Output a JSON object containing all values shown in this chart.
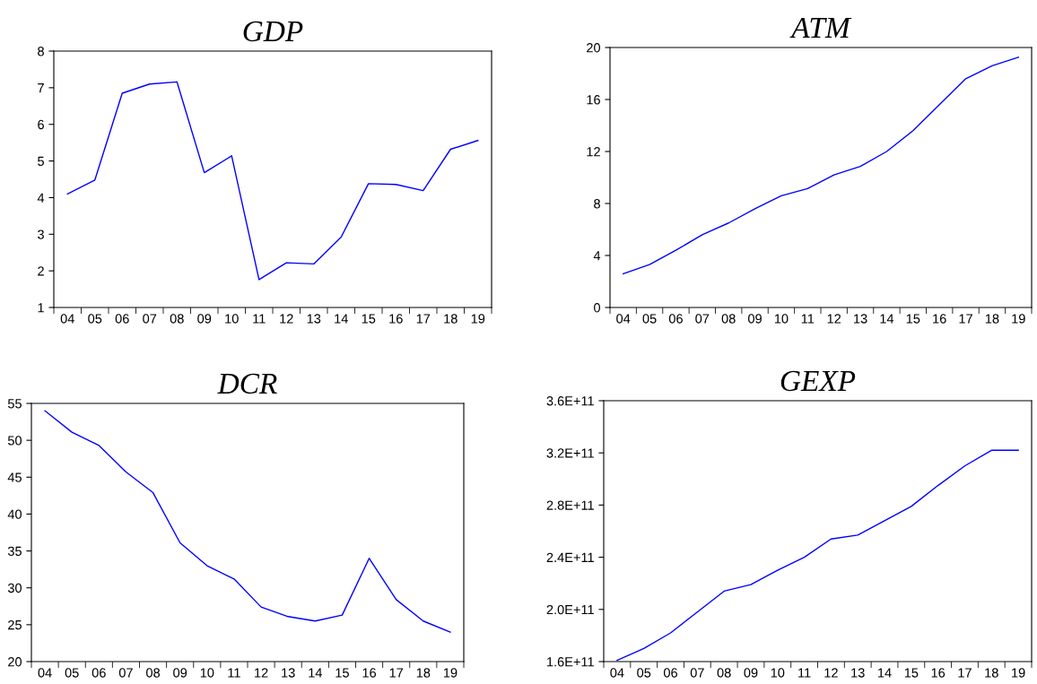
{
  "chart_data": [
    {
      "type": "line",
      "title": "GDP",
      "categories": [
        "04",
        "05",
        "06",
        "07",
        "08",
        "09",
        "10",
        "11",
        "12",
        "13",
        "14",
        "15",
        "16",
        "17",
        "18",
        "19"
      ],
      "series": [
        {
          "color": "#0000ff",
          "values": [
            4.1,
            4.48,
            6.85,
            7.1,
            7.16,
            4.68,
            5.14,
            1.76,
            2.22,
            2.19,
            2.92,
            4.38,
            4.36,
            4.19,
            5.32,
            5.56
          ]
        }
      ],
      "ylim": [
        1,
        8
      ],
      "yticks": [
        1,
        2,
        3,
        4,
        5,
        6,
        7,
        8
      ],
      "grid": false
    },
    {
      "type": "line",
      "title": "ATM",
      "categories": [
        "04",
        "05",
        "06",
        "07",
        "08",
        "09",
        "10",
        "11",
        "12",
        "13",
        "14",
        "15",
        "16",
        "17",
        "18",
        "19"
      ],
      "series": [
        {
          "color": "#0000ff",
          "values": [
            2.6,
            3.3,
            4.4,
            5.6,
            6.5,
            7.6,
            8.6,
            9.15,
            10.2,
            10.85,
            12.0,
            13.6,
            15.6,
            17.6,
            18.6,
            19.25
          ]
        }
      ],
      "ylim": [
        0,
        20
      ],
      "yticks": [
        0,
        4,
        8,
        12,
        16,
        20
      ],
      "grid": false
    },
    {
      "type": "line",
      "title": "DCR",
      "categories": [
        "04",
        "05",
        "06",
        "07",
        "08",
        "09",
        "10",
        "11",
        "12",
        "13",
        "14",
        "15",
        "16",
        "17",
        "18",
        "19"
      ],
      "series": [
        {
          "color": "#0000ff",
          "values": [
            54.0,
            51.1,
            49.3,
            45.7,
            42.9,
            36.1,
            33.0,
            31.2,
            27.4,
            26.1,
            25.5,
            26.3,
            34.0,
            28.4,
            25.5,
            24.0
          ]
        }
      ],
      "ylim": [
        20,
        55
      ],
      "yticks": [
        20,
        25,
        30,
        35,
        40,
        45,
        50,
        55
      ],
      "grid": false
    },
    {
      "type": "line",
      "title": "GEXP",
      "categories": [
        "04",
        "05",
        "06",
        "07",
        "08",
        "09",
        "10",
        "11",
        "12",
        "13",
        "14",
        "15",
        "16",
        "17",
        "18",
        "19"
      ],
      "series": [
        {
          "color": "#0000ff",
          "values": [
            161000000000.0,
            170000000000.0,
            182000000000.0,
            198000000000.0,
            214000000000.0,
            219000000000.0,
            230000000000.0,
            240000000000.0,
            254000000000.0,
            257000000000.0,
            268000000000.0,
            279000000000.0,
            295000000000.0,
            310000000000.0,
            322000000000.0,
            322000000000.0
          ]
        }
      ],
      "ylim": [
        160000000000.0,
        360000000000.0
      ],
      "yticks": [
        {
          "value": 160000000000.0,
          "label": "1.6E+11"
        },
        {
          "value": 200000000000.0,
          "label": "2.0E+11"
        },
        {
          "value": 240000000000.0,
          "label": "2.4E+11"
        },
        {
          "value": 280000000000.0,
          "label": "2.8E+11"
        },
        {
          "value": 320000000000.0,
          "label": "3.2E+11"
        },
        {
          "value": 360000000000.0,
          "label": "3.6E+11"
        }
      ],
      "grid": false
    }
  ]
}
